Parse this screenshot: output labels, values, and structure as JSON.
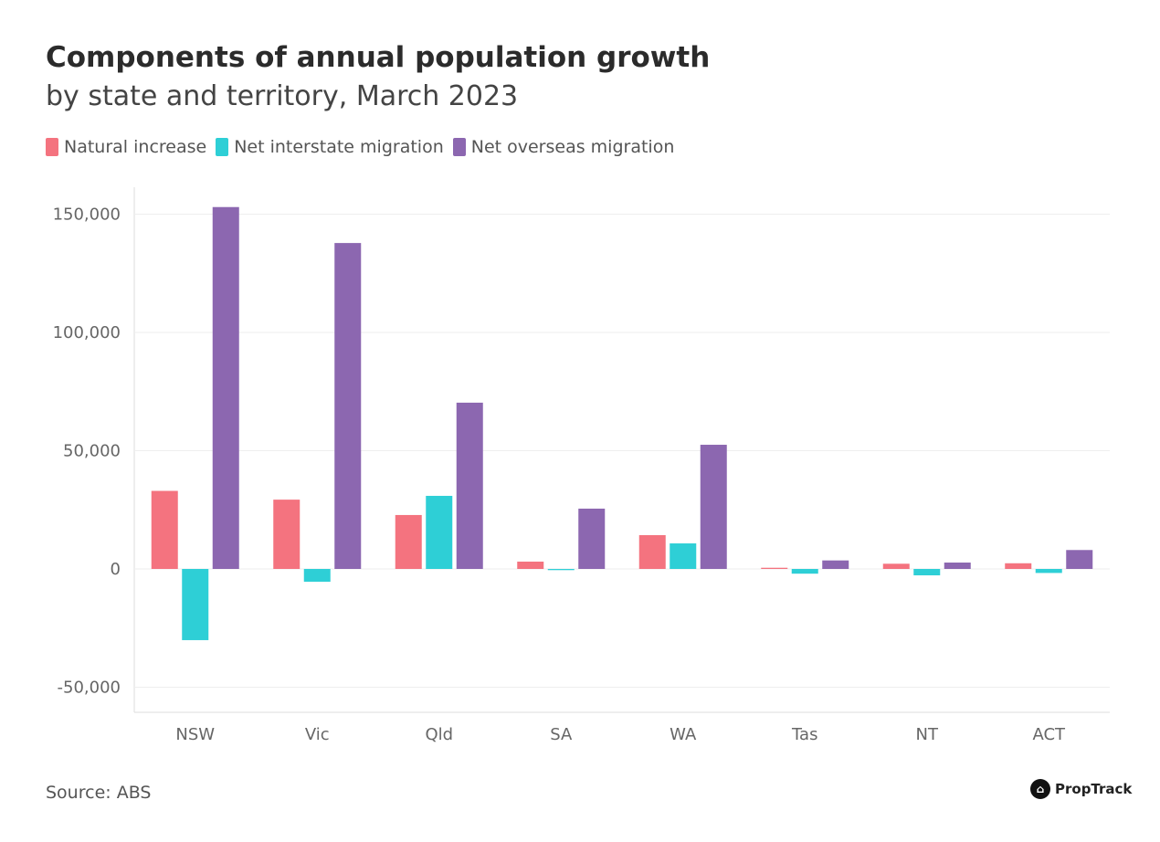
{
  "chart_data": {
    "type": "bar",
    "title": "Components of annual population growth",
    "subtitle": "by state and territory, March 2023",
    "categories": [
      "NSW",
      "Vic",
      "Qld",
      "SA",
      "WA",
      "Tas",
      "NT",
      "ACT"
    ],
    "series": [
      {
        "name": "Natural increase",
        "color": "#f4737f",
        "values": [
          33000,
          29300,
          22800,
          3100,
          14300,
          500,
          2200,
          2400
        ]
      },
      {
        "name": "Net interstate migration",
        "color": "#2ecfd6",
        "values": [
          -30100,
          -5400,
          30900,
          -500,
          10800,
          -2000,
          -2700,
          -1700
        ]
      },
      {
        "name": "Net overseas migration",
        "color": "#8c67b0",
        "values": [
          153000,
          137800,
          70300,
          25500,
          52500,
          3600,
          2700,
          8000
        ]
      }
    ],
    "yticks": [
      150000,
      100000,
      50000,
      0,
      -50000
    ],
    "ytick_labels": [
      "150,000",
      "100,000",
      "50,000",
      "0",
      "-50,000"
    ],
    "ylim": [
      -60000,
      165000
    ],
    "grid": true,
    "legend": "top-left",
    "xlabel": "",
    "ylabel": ""
  },
  "source": "Source: ABS",
  "logo": "PropTrack"
}
